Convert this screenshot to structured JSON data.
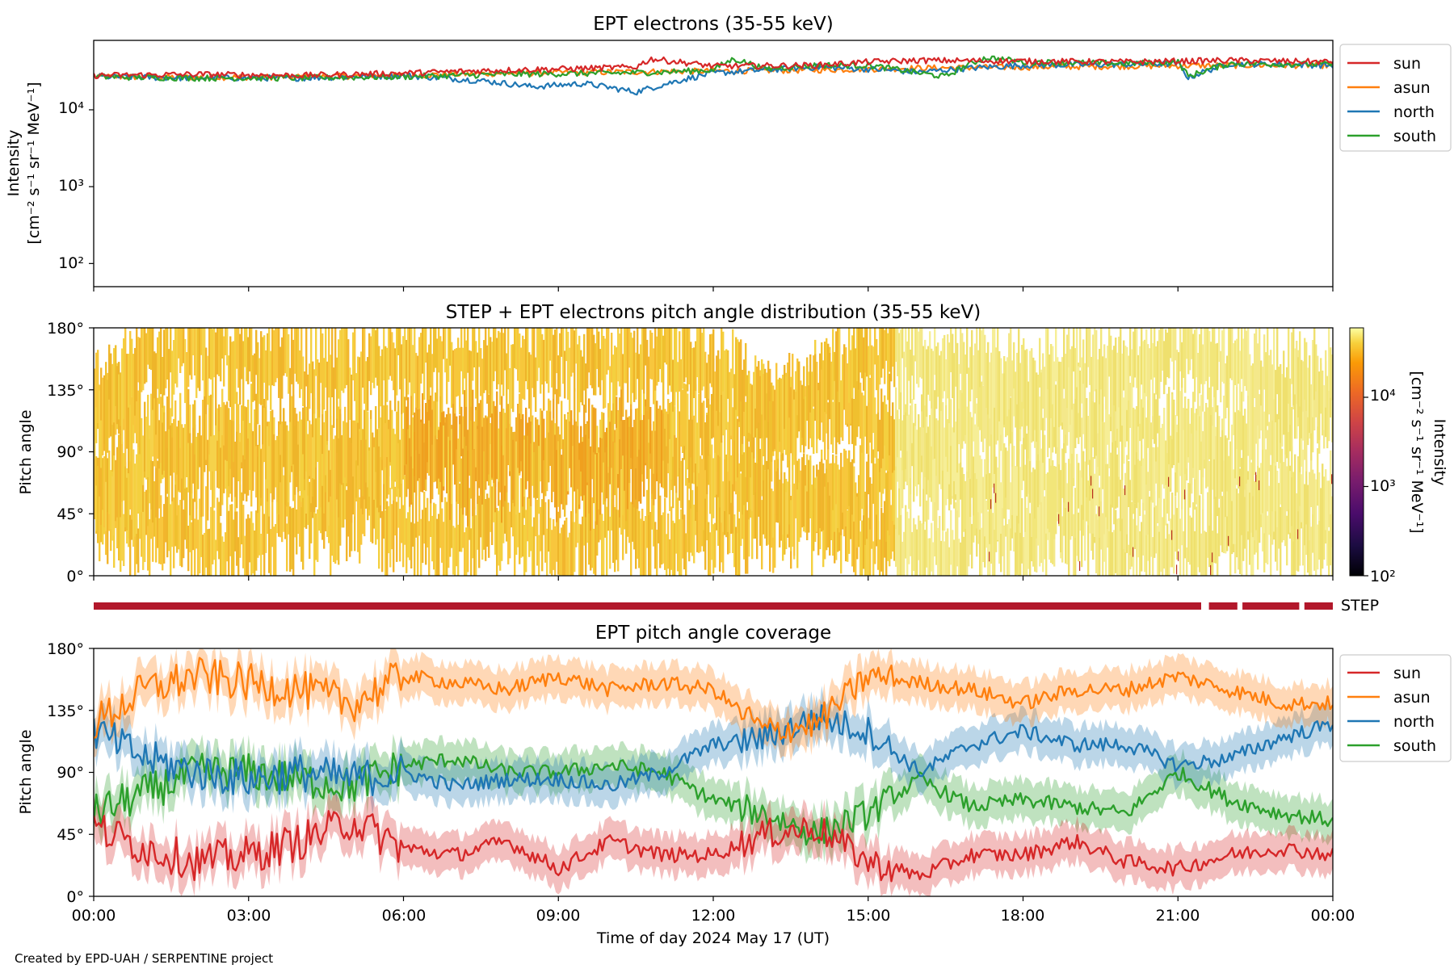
{
  "credit": "Created by EPD-UAH / SERPENTINE project",
  "colors": {
    "sun": "#d62728",
    "asun": "#ff7f0e",
    "north": "#1f77b4",
    "south": "#2ca02c",
    "step_bar": "#b2182b"
  },
  "chart_data": [
    {
      "type": "line",
      "title": "EPT electrons (35-55 keV)",
      "ylabel_line1": "Intensity",
      "ylabel_line2": "[cm⁻² s⁻¹ sr⁻¹ MeV⁻¹]",
      "yscale": "log",
      "ylim": [
        50,
        80000
      ],
      "yticks": [
        "10²",
        "10³",
        "10⁴"
      ],
      "ytick_values": [
        100,
        1000,
        10000
      ],
      "x_unit": "hours since 00:00",
      "xlim": [
        0,
        24
      ],
      "legend": {
        "position": "outside-right",
        "entries": [
          "sun",
          "asun",
          "north",
          "south"
        ]
      },
      "series": [
        {
          "name": "sun",
          "x": [
            0,
            2,
            4,
            6,
            8,
            9,
            10.5,
            10.8,
            12,
            14,
            15,
            16,
            18,
            20,
            22,
            24
          ],
          "values": [
            28000,
            29000,
            28000,
            30000,
            33000,
            34000,
            36000,
            46000,
            37000,
            38000,
            42000,
            44000,
            43000,
            42000,
            44000,
            42000
          ]
        },
        {
          "name": "asun",
          "x": [
            0,
            2,
            4,
            6,
            8,
            10,
            12,
            14,
            16,
            18,
            20,
            22,
            24
          ],
          "values": [
            27000,
            26500,
            27000,
            28000,
            30000,
            31000,
            32000,
            33000,
            35000,
            36000,
            37000,
            38000,
            38000
          ]
        },
        {
          "name": "north",
          "x": [
            0,
            2,
            4,
            6,
            7.5,
            8.5,
            9.5,
            10.5,
            11,
            12,
            14,
            15,
            16,
            17,
            18,
            20,
            21,
            21.2,
            22,
            24
          ],
          "values": [
            27000,
            26000,
            26000,
            28000,
            24000,
            20000,
            22000,
            17000,
            21000,
            30000,
            36000,
            34000,
            31000,
            35000,
            38000,
            39000,
            40000,
            26000,
            40000,
            38000
          ]
        },
        {
          "name": "south",
          "x": [
            0,
            2,
            4,
            6,
            8,
            10,
            11,
            12,
            12.4,
            13,
            14,
            15,
            16,
            16.5,
            17,
            17.3,
            18,
            20,
            21,
            21.2,
            22,
            24
          ],
          "values": [
            27000,
            26000,
            26000,
            27000,
            29000,
            30000,
            31000,
            33000,
            46000,
            34000,
            38000,
            38000,
            30000,
            27000,
            40000,
            48000,
            42000,
            40000,
            42000,
            27000,
            40000,
            39000
          ]
        }
      ]
    },
    {
      "type": "heatmap",
      "title": "STEP + EPT electrons pitch angle distribution (35-55 keV)",
      "ylabel": "Pitch angle",
      "ylim": [
        0,
        180
      ],
      "yticks": [
        "0°",
        "45°",
        "90°",
        "135°",
        "180°"
      ],
      "ytick_values": [
        0,
        45,
        90,
        135,
        180
      ],
      "x_unit": "hours since 00:00",
      "xlim": [
        0,
        24
      ],
      "colorbar": {
        "label_line1": "Intensity",
        "label_line2": "[cm⁻² s⁻¹ sr⁻¹ MeV⁻¹]",
        "scale": "log",
        "range": [
          100,
          60000
        ],
        "ticks": [
          "10²",
          "10³",
          "10⁴"
        ],
        "tick_values": [
          100,
          1000,
          10000
        ],
        "colormap": "inferno"
      },
      "typical_intensity": 30000,
      "step_label": "STEP",
      "step_coverage_hours": [
        [
          0,
          21.45
        ],
        [
          21.6,
          22.15
        ],
        [
          22.25,
          23.35
        ],
        [
          23.45,
          24
        ]
      ]
    },
    {
      "type": "line",
      "title": "EPT pitch angle coverage",
      "ylabel": "Pitch angle",
      "xlabel": "Time of day 2024 May 17 (UT)",
      "ylim": [
        0,
        180
      ],
      "yticks": [
        "0°",
        "45°",
        "90°",
        "135°",
        "180°"
      ],
      "ytick_values": [
        0,
        45,
        90,
        135,
        180
      ],
      "x_unit": "hours since 00:00",
      "xlim": [
        0,
        24
      ],
      "xticks": [
        "00:00",
        "03:00",
        "06:00",
        "09:00",
        "12:00",
        "15:00",
        "18:00",
        "21:00",
        "00:00"
      ],
      "xtick_values": [
        0,
        3,
        6,
        9,
        12,
        15,
        18,
        21,
        24
      ],
      "bands": "shaded ± range around each line",
      "legend": {
        "position": "outside-right",
        "entries": [
          "sun",
          "asun",
          "north",
          "south"
        ]
      },
      "series": [
        {
          "name": "sun",
          "x": [
            0,
            1,
            2,
            3,
            4,
            5,
            6,
            7,
            8,
            9,
            10,
            11,
            12,
            13,
            14,
            15,
            16,
            17,
            18,
            19,
            20,
            21,
            22,
            23,
            24
          ],
          "values": [
            50,
            35,
            25,
            30,
            40,
            55,
            35,
            30,
            40,
            20,
            40,
            30,
            30,
            45,
            50,
            25,
            15,
            30,
            30,
            40,
            25,
            20,
            30,
            35,
            30
          ]
        },
        {
          "name": "asun",
          "x": [
            0,
            1,
            2,
            3,
            4,
            5,
            6,
            7,
            8,
            9,
            10,
            11,
            12,
            13,
            14,
            15,
            16,
            17,
            18,
            19,
            20,
            21,
            22,
            23,
            24
          ],
          "values": [
            125,
            150,
            160,
            155,
            150,
            140,
            160,
            155,
            150,
            160,
            150,
            155,
            150,
            120,
            125,
            160,
            155,
            150,
            140,
            150,
            150,
            160,
            150,
            140,
            140
          ]
        },
        {
          "name": "north",
          "x": [
            0,
            1,
            2,
            3,
            4,
            5,
            6,
            7,
            8,
            9,
            10,
            11,
            12,
            13,
            14,
            15,
            16,
            17,
            18,
            19,
            20,
            21,
            22,
            23,
            24
          ],
          "values": [
            120,
            100,
            90,
            85,
            90,
            85,
            90,
            80,
            85,
            85,
            80,
            90,
            110,
            115,
            130,
            120,
            90,
            110,
            120,
            110,
            110,
            95,
            100,
            115,
            125
          ]
        },
        {
          "name": "south",
          "x": [
            0,
            1,
            2,
            3,
            4,
            5,
            6,
            7,
            8,
            9,
            10,
            11,
            12,
            13,
            14,
            15,
            16,
            17,
            18,
            19,
            20,
            21,
            22,
            23,
            24
          ],
          "values": [
            60,
            75,
            90,
            90,
            85,
            80,
            95,
            100,
            90,
            90,
            95,
            90,
            70,
            60,
            45,
            60,
            85,
            65,
            70,
            65,
            60,
            90,
            70,
            60,
            55
          ]
        }
      ]
    }
  ]
}
